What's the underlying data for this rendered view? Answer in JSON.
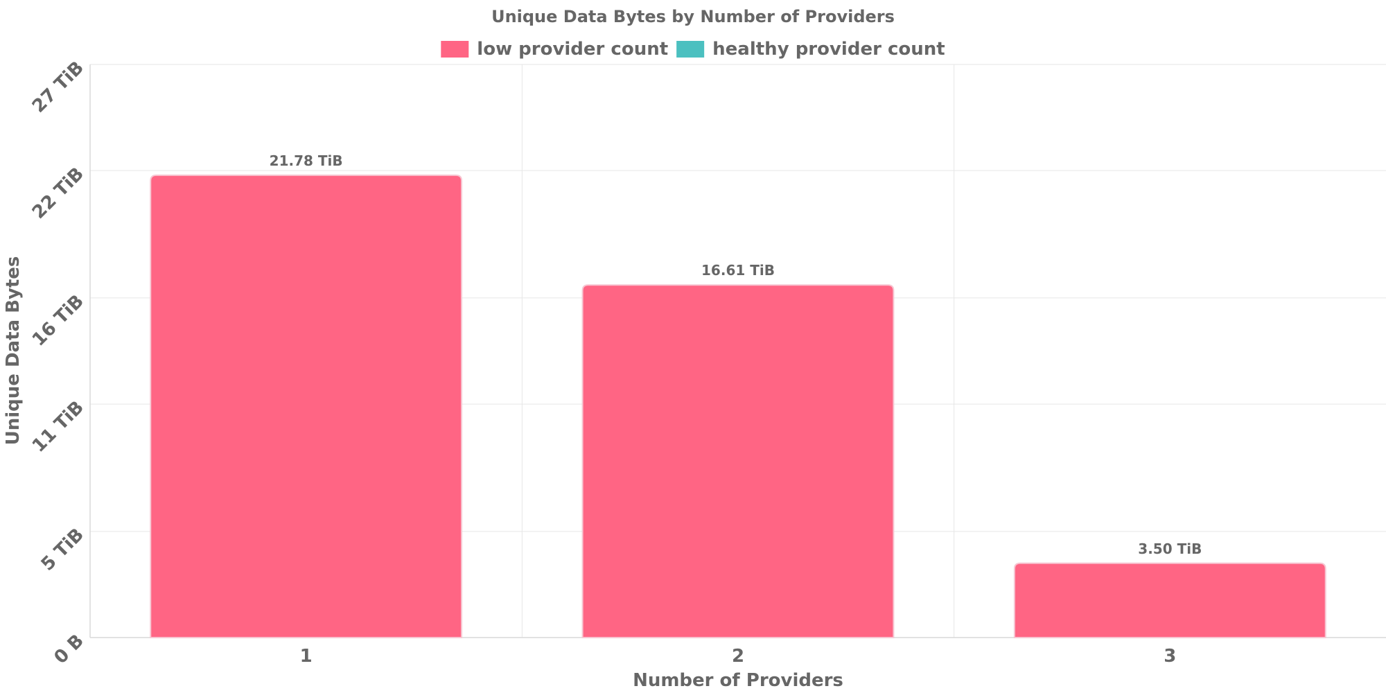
{
  "chart_data": {
    "type": "bar",
    "title": "Unique Data Bytes by Number of Providers",
    "xlabel": "Number of Providers",
    "ylabel": "Unique Data Bytes",
    "categories": [
      "1",
      "2",
      "3"
    ],
    "ylim": [
      0,
      27
    ],
    "yunit": "TiB",
    "yticks": [
      0,
      5,
      11,
      16,
      22,
      27
    ],
    "ytick_labels": [
      "0 B",
      "5 TiB",
      "11 TiB",
      "16 TiB",
      "22 TiB",
      "27 TiB"
    ],
    "series": [
      {
        "name": "low provider count",
        "color": "#ff6584",
        "values": [
          21.78,
          16.61,
          3.5
        ],
        "labels": [
          "21.78 TiB",
          "16.61 TiB",
          "3.50 TiB"
        ]
      },
      {
        "name": "healthy provider count",
        "color": "#4bc0c0",
        "values": [
          0,
          0,
          0
        ],
        "labels": []
      }
    ],
    "legend_position": "top",
    "grid": true
  }
}
